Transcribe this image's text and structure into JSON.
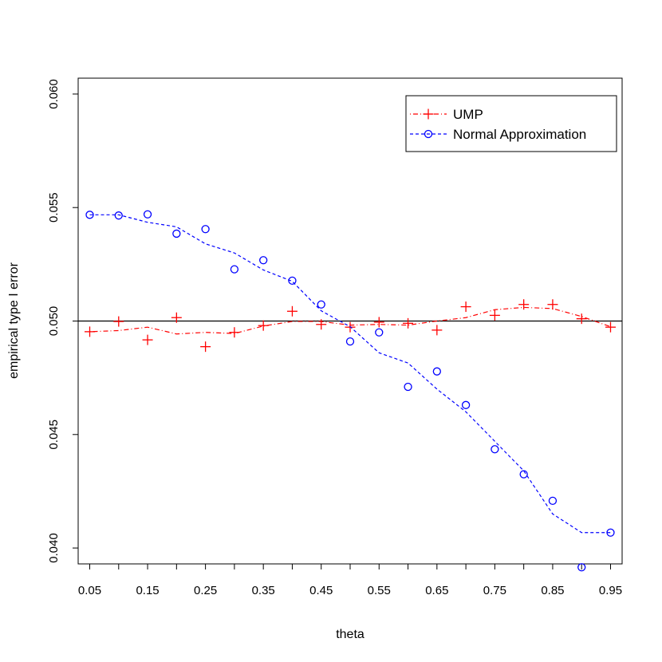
{
  "chart_data": {
    "type": "line",
    "title": "",
    "xlabel": "theta",
    "ylabel": "empirical type I error",
    "xlim": [
      0.03,
      0.97
    ],
    "ylim": [
      0.0393,
      0.0607
    ],
    "x_ticks": [
      "0.05",
      "0.15",
      "0.25",
      "0.35",
      "0.45",
      "0.55",
      "0.65",
      "0.75",
      "0.85",
      "0.95"
    ],
    "x_tick_values": [
      0.05,
      0.15,
      0.25,
      0.35,
      0.45,
      0.55,
      0.65,
      0.75,
      0.85,
      0.95
    ],
    "y_ticks": [
      "0.040",
      "0.045",
      "0.050",
      "0.055",
      "0.060"
    ],
    "y_tick_values": [
      0.04,
      0.045,
      0.05,
      0.055,
      0.06
    ],
    "x_minor_ticks": [
      0.1,
      0.2,
      0.3,
      0.4,
      0.5,
      0.6,
      0.7,
      0.8,
      0.9
    ],
    "reference_line": 0.05,
    "grid": false,
    "legend_position": "top-right",
    "x": [
      0.05,
      0.1,
      0.15,
      0.2,
      0.25,
      0.3,
      0.35,
      0.4,
      0.45,
      0.5,
      0.55,
      0.6,
      0.65,
      0.7,
      0.75,
      0.8,
      0.85,
      0.9,
      0.95
    ],
    "series": [
      {
        "name": "UMP",
        "color": "#ff0000",
        "marker": "plus",
        "line_style": "dot-dash",
        "points": [
          0.04953,
          0.04998,
          0.04917,
          0.05015,
          0.04887,
          0.0495,
          0.0498,
          0.05043,
          0.04985,
          0.04973,
          0.04995,
          0.0499,
          0.0496,
          0.05063,
          0.05025,
          0.05073,
          0.05073,
          0.0501,
          0.04973
        ],
        "smooth": [
          0.04953,
          0.04958,
          0.04973,
          0.04943,
          0.0495,
          0.04945,
          0.04978,
          0.04998,
          0.04998,
          0.04982,
          0.04985,
          0.04982,
          0.05,
          0.05015,
          0.0505,
          0.0506,
          0.05055,
          0.0502,
          0.04975
        ]
      },
      {
        "name": "Normal Approximation",
        "color": "#0000ff",
        "marker": "circle",
        "line_style": "dashed",
        "points": [
          0.05468,
          0.05465,
          0.0547,
          0.05385,
          0.05405,
          0.05228,
          0.05268,
          0.05178,
          0.05073,
          0.0491,
          0.0495,
          0.0471,
          0.04778,
          0.0463,
          0.04435,
          0.04325,
          0.04208,
          0.03915,
          0.04068
        ],
        "smooth": [
          0.05468,
          0.05468,
          0.05435,
          0.05415,
          0.0534,
          0.053,
          0.05225,
          0.05175,
          0.05045,
          0.04975,
          0.0486,
          0.04815,
          0.047,
          0.046,
          0.0447,
          0.0434,
          0.0415,
          0.04068,
          0.04068
        ]
      }
    ]
  }
}
